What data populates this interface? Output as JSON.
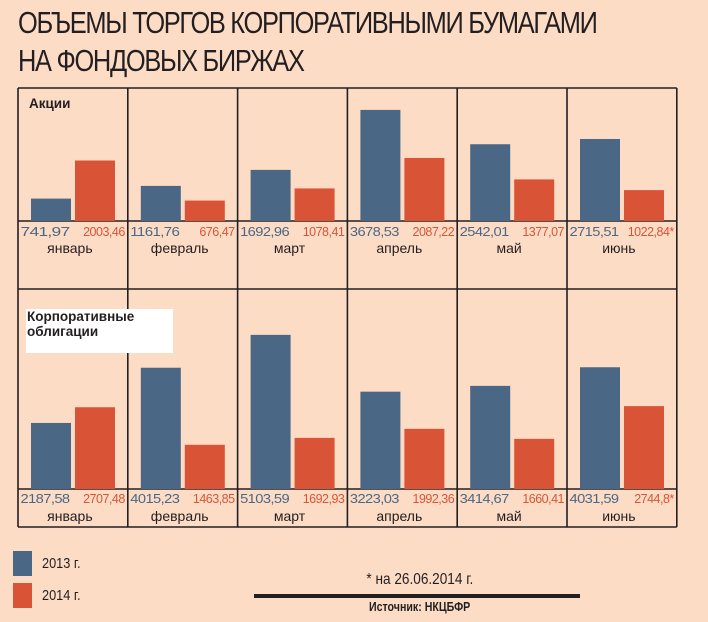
{
  "title_lines": [
    "ОБЪЕМЫ ТОРГОВ КОРПОРАТИВНЫМИ БУМАГАМИ",
    "НА ФОНДОВЫХ БИРЖАХ"
  ],
  "colors": {
    "series_2013": "#4a6785",
    "series_2014": "#d95436",
    "grid": "#231f20",
    "background": "#fddcc6"
  },
  "legend": [
    {
      "label": "2013 г.",
      "color": "#4a6785"
    },
    {
      "label": "2014 г.",
      "color": "#d95436"
    }
  ],
  "footnote": "* на 26.06.2014 г.",
  "source": "Источник: НКЦБФР",
  "chart_data": [
    {
      "type": "bar",
      "title": "Акции",
      "categories": [
        "январь",
        "февраль",
        "март",
        "апрель",
        "май",
        "июнь"
      ],
      "series": [
        {
          "name": "2013 г.",
          "values": [
            741.97,
            1161.76,
            1692.96,
            3678.53,
            2542.01,
            2715.51
          ],
          "labels": [
            "741,97",
            "1161,76",
            "1692,96",
            "3678,53",
            "2542,01",
            "2715,51"
          ]
        },
        {
          "name": "2014 г.",
          "values": [
            2003.46,
            676.47,
            1078.41,
            2087.22,
            1377.07,
            1022.84
          ],
          "labels": [
            "2003,46",
            "676,47",
            "1078,41",
            "2087,22",
            "1377,07",
            "1022,84*"
          ]
        }
      ],
      "xlabel": "",
      "ylabel": "",
      "grid": true,
      "legend": "bottom-left"
    },
    {
      "type": "bar",
      "title": "Корпоративные облигации",
      "categories": [
        "январь",
        "февраль",
        "март",
        "апрель",
        "май",
        "июнь"
      ],
      "series": [
        {
          "name": "2013 г.",
          "values": [
            2187.58,
            4015.23,
            5103.59,
            3223.03,
            3414.67,
            4031.59
          ],
          "labels": [
            "2187,58",
            "4015,23",
            "5103,59",
            "3223,03",
            "3414,67",
            "4031,59"
          ]
        },
        {
          "name": "2014 г.",
          "values": [
            2707.48,
            1463.85,
            1692.93,
            1992.36,
            1660.41,
            2744.8
          ],
          "labels": [
            "2707,48",
            "1463,85",
            "1692,93",
            "1992,36",
            "1660,41",
            "2744,8*"
          ]
        }
      ],
      "xlabel": "",
      "ylabel": "",
      "grid": true,
      "legend": "bottom-left"
    }
  ]
}
